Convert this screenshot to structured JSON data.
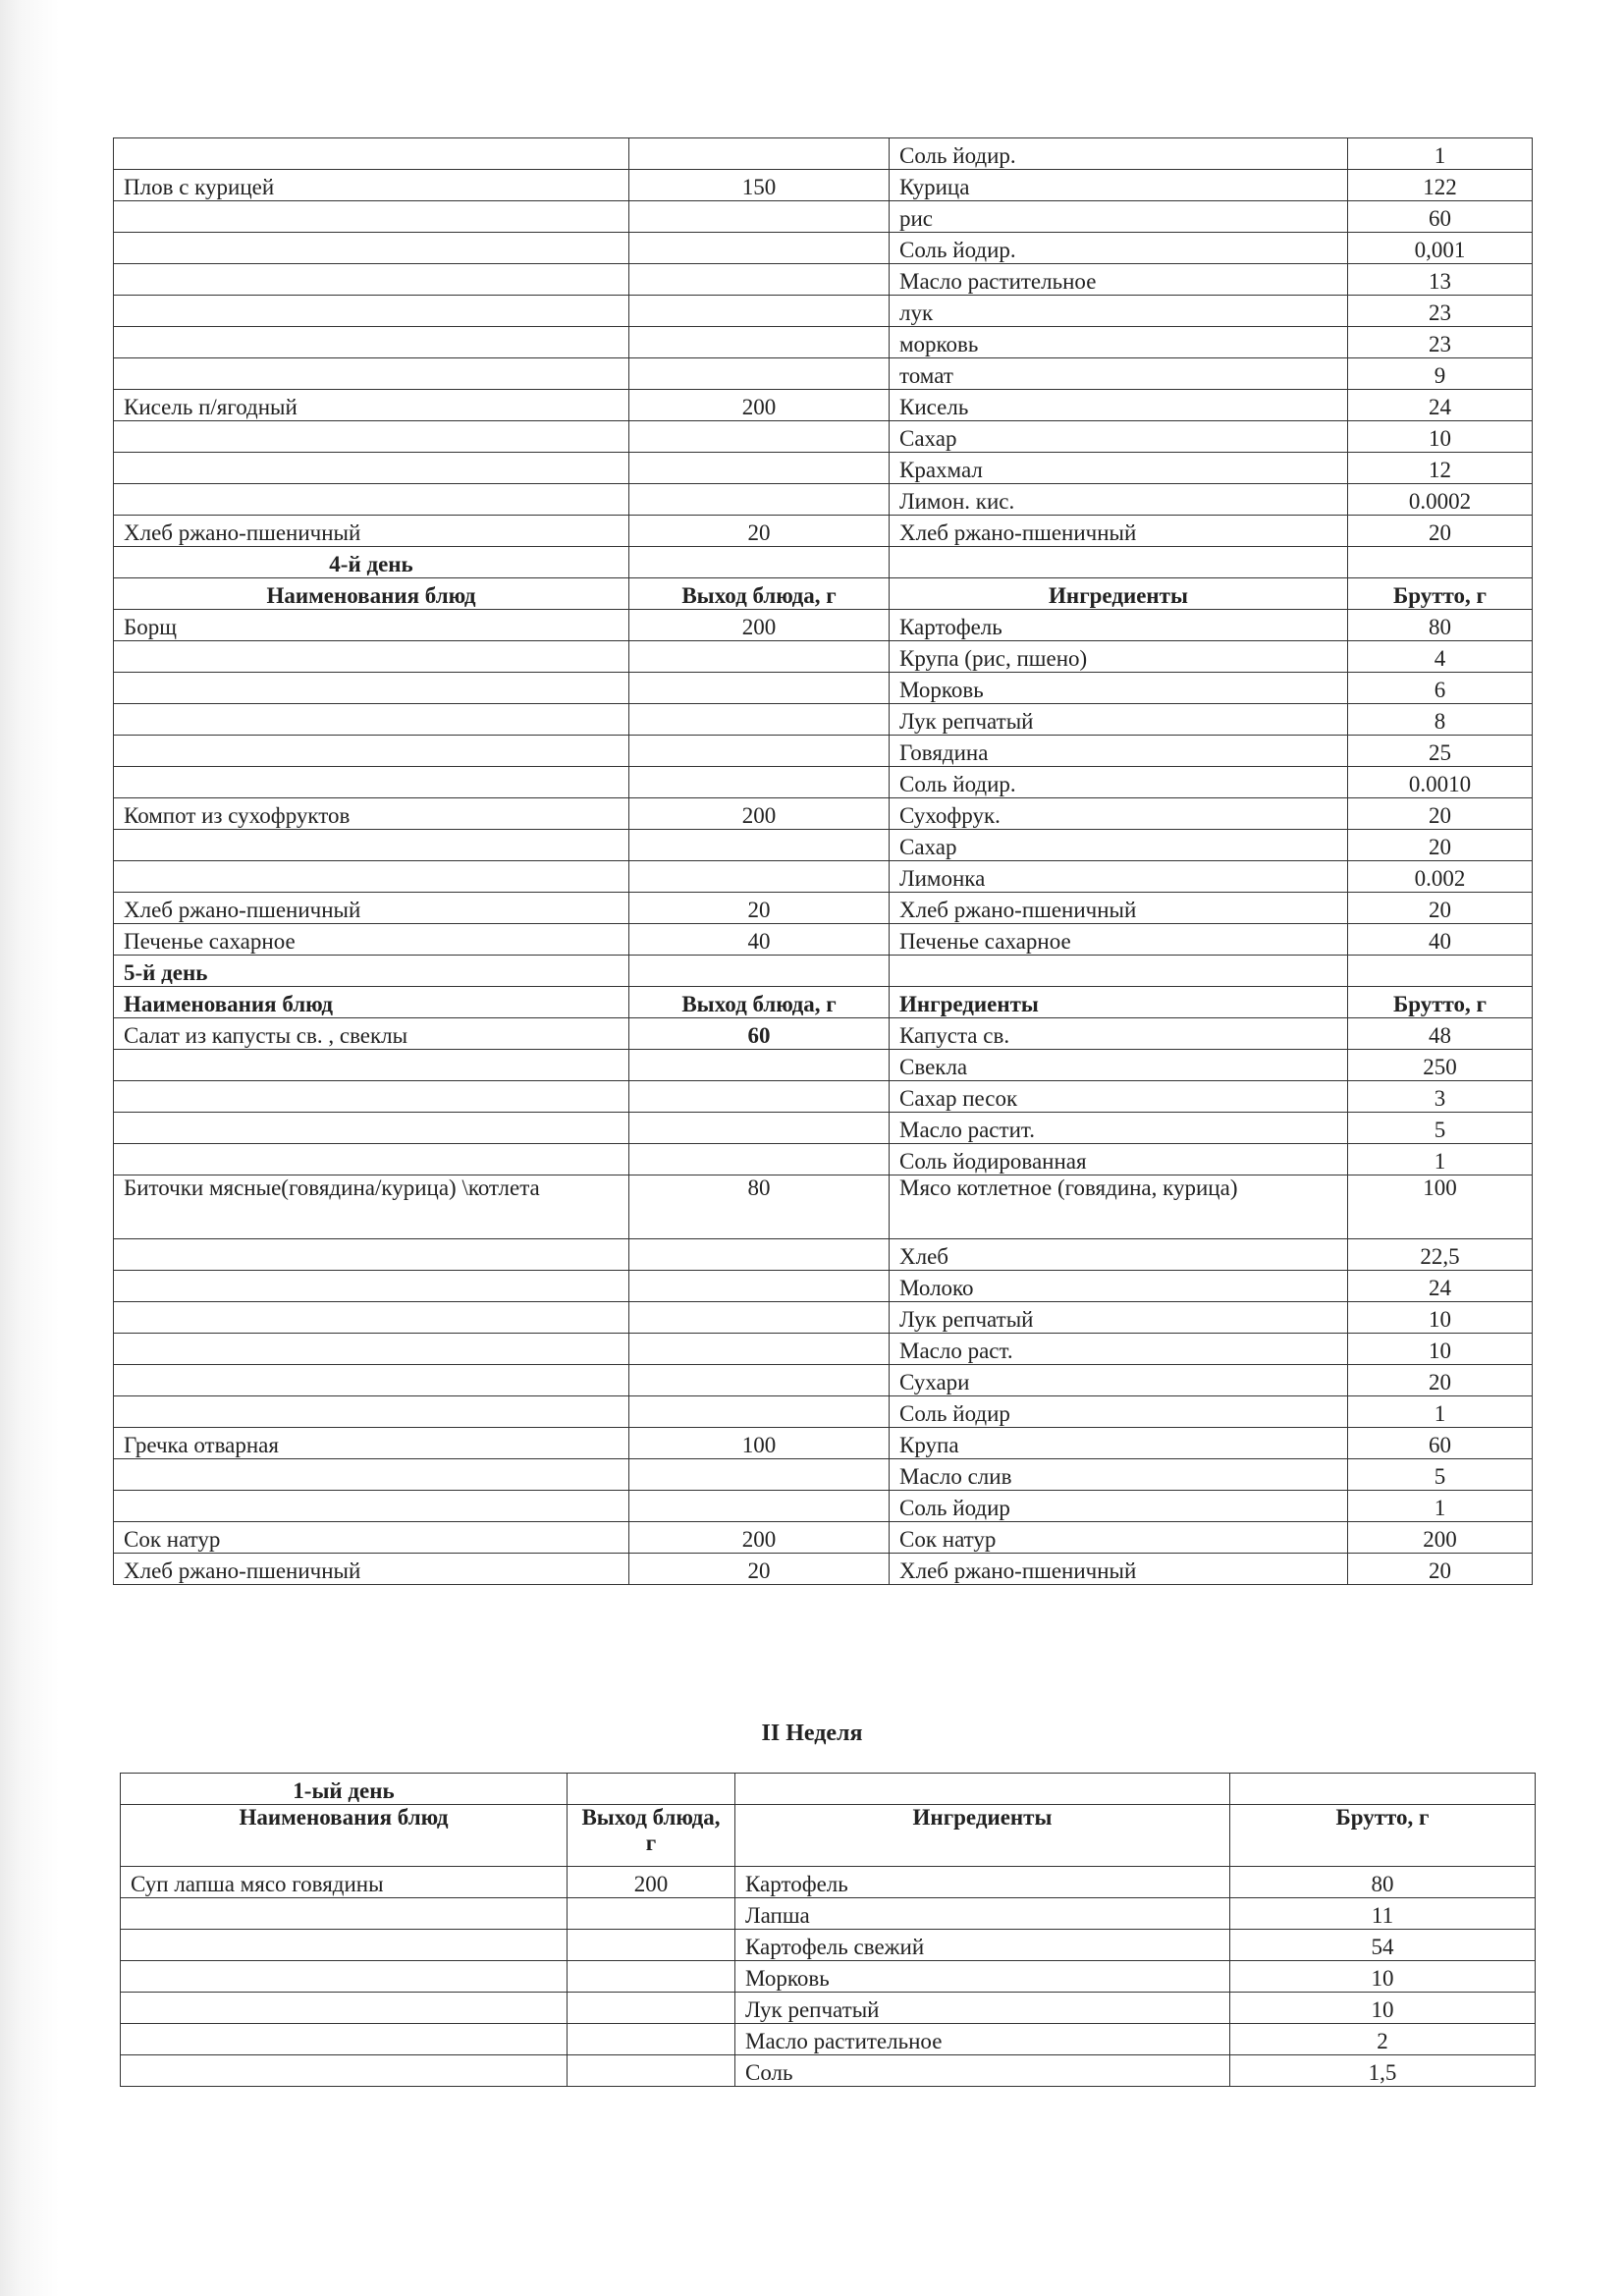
{
  "week1_table": {
    "rows": [
      {
        "name": "",
        "yield": "",
        "ingredient": "Соль йодир.",
        "brutto": "1"
      },
      {
        "name": "Плов с курицей",
        "yield": "150",
        "ingredient": "Курица",
        "brutto": "122"
      },
      {
        "name": "",
        "yield": "",
        "ingredient": "рис",
        "brutto": "60"
      },
      {
        "name": "",
        "yield": "",
        "ingredient": "Соль йодир.",
        "brutto": "0,001"
      },
      {
        "name": "",
        "yield": "",
        "ingredient": "Масло растительное",
        "brutto": "13"
      },
      {
        "name": "",
        "yield": "",
        "ingredient": "лук",
        "brutto": "23"
      },
      {
        "name": "",
        "yield": "",
        "ingredient": "морковь",
        "brutto": "23"
      },
      {
        "name": "",
        "yield": "",
        "ingredient": "томат",
        "brutto": "9"
      },
      {
        "name": "Кисель п/ягодный",
        "yield": "200",
        "ingredient": "Кисель",
        "brutto": "24"
      },
      {
        "name": "",
        "yield": "",
        "ingredient": "Сахар",
        "brutto": "10"
      },
      {
        "name": "",
        "yield": "",
        "ingredient": "Крахмал",
        "brutto": "12"
      },
      {
        "name": "",
        "yield": "",
        "ingredient": "Лимон. кис.",
        "brutto": "0.0002"
      },
      {
        "name": "Хлеб ржано-пшеничный",
        "yield": "20",
        "ingredient": "Хлеб ржано-пшеничный",
        "brutto": "20"
      },
      {
        "type": "day",
        "name": "4-й день",
        "center": true
      },
      {
        "type": "header",
        "name": "Наименования блюд",
        "yield": "Выход блюда, г",
        "ingredient": "Ингредиенты",
        "brutto": "Брутто, г",
        "center": true
      },
      {
        "name": "Борщ",
        "yield": "200",
        "ingredient": "Картофель",
        "brutto": "80"
      },
      {
        "name": "",
        "yield": "",
        "ingredient": "Крупа (рис, пшено)",
        "brutto": "4"
      },
      {
        "name": "",
        "yield": "",
        "ingredient": "Морковь",
        "brutto": "6"
      },
      {
        "name": "",
        "yield": "",
        "ingredient": "Лук репчатый",
        "brutto": "8"
      },
      {
        "name": "",
        "yield": "",
        "ingredient": "Говядина",
        "brutto": "25"
      },
      {
        "name": "",
        "yield": "",
        "ingredient": "Соль йодир.",
        "brutto": "0.0010"
      },
      {
        "name": "Компот из сухофруктов",
        "yield": "200",
        "ingredient": "Сухофрук.",
        "brutto": "20"
      },
      {
        "name": "",
        "yield": "",
        "ingredient": "Сахар",
        "brutto": "20"
      },
      {
        "name": "",
        "yield": "",
        "ingredient": "Лимонка",
        "brutto": "0.002"
      },
      {
        "name": "Хлеб ржано-пшеничный",
        "yield": "20",
        "ingredient": "Хлеб ржано-пшеничный",
        "brutto": "20"
      },
      {
        "name": "Печенье сахарное",
        "yield": "40",
        "ingredient": "Печенье сахарное",
        "brutto": "40"
      },
      {
        "type": "day",
        "name": "5-й день"
      },
      {
        "type": "header",
        "name": "Наименования блюд",
        "yield": "Выход блюда, г",
        "ingredient": "Ингредиенты",
        "brutto": "Брутто, г"
      },
      {
        "name": "Салат из капусты св. , свеклы",
        "yield": "60",
        "yield_bold": true,
        "ingredient": "Капуста св.",
        "brutto": "48"
      },
      {
        "name": "",
        "yield": "",
        "ingredient": "Свекла",
        "brutto": "250"
      },
      {
        "name": "",
        "yield": "",
        "ingredient": "Сахар песок",
        "brutto": "3"
      },
      {
        "name": "",
        "yield": "",
        "ingredient": "Масло растит.",
        "brutto": "5"
      },
      {
        "name": "",
        "yield": "",
        "ingredient": "Соль йодированная",
        "brutto": "1"
      },
      {
        "name": "Биточки мясные(говядина/курица) \\котлета",
        "yield": "80",
        "ingredient": "Мясо котлетное (говядина, курица)",
        "brutto": "100",
        "tall": true
      },
      {
        "name": "",
        "yield": "",
        "ingredient": "Хлеб",
        "brutto": "22,5"
      },
      {
        "name": "",
        "yield": "",
        "ingredient": "Молоко",
        "brutto": "24"
      },
      {
        "name": "",
        "yield": "",
        "ingredient": "Лук репчатый",
        "brutto": "10"
      },
      {
        "name": "",
        "yield": "",
        "ingredient": "Масло раст.",
        "brutto": "10"
      },
      {
        "name": "",
        "yield": "",
        "ingredient": "Сухари",
        "brutto": "20"
      },
      {
        "name": "",
        "yield": "",
        "ingredient": "Соль йодир",
        "brutto": "1"
      },
      {
        "name": "Гречка отварная",
        "yield": "100",
        "ingredient": "Крупа",
        "brutto": "60"
      },
      {
        "name": "",
        "yield": "",
        "ingredient": "Масло слив",
        "brutto": "5"
      },
      {
        "name": "",
        "yield": "",
        "ingredient": "Соль йодир",
        "brutto": "1"
      },
      {
        "name": "Сок натур",
        "yield": "200",
        "ingredient": "Сок натур",
        "brutto": "200"
      },
      {
        "name": "Хлеб ржано-пшеничный",
        "yield": "20",
        "ingredient": "Хлеб ржано-пшеничный",
        "brutto": "20"
      }
    ]
  },
  "week2_title": "II Неделя",
  "week2_table": {
    "rows": [
      {
        "type": "day",
        "name": "1-ый день",
        "center": true
      },
      {
        "type": "header",
        "name": "Наименования блюд",
        "yield": "Выход блюда, г",
        "ingredient": "Ингредиенты",
        "brutto": "Брутто, г",
        "center": true,
        "tallhdr": true
      },
      {
        "name": "Суп лапша мясо говядины",
        "yield": "200",
        "ingredient": "Картофель",
        "brutto": "80"
      },
      {
        "name": "",
        "yield": "",
        "ingredient": "Лапша",
        "brutto": "11"
      },
      {
        "name": "",
        "yield": "",
        "ingredient": "Картофель свежий",
        "brutto": "54"
      },
      {
        "name": "",
        "yield": "",
        "ingredient": "Морковь",
        "brutto": "10"
      },
      {
        "name": "",
        "yield": "",
        "ingredient": "Лук репчатый",
        "brutto": "10"
      },
      {
        "name": "",
        "yield": "",
        "ingredient": "Масло растительное",
        "brutto": "2"
      },
      {
        "name": "",
        "yield": "",
        "ingredient": "Соль",
        "brutto": "1,5"
      }
    ]
  }
}
